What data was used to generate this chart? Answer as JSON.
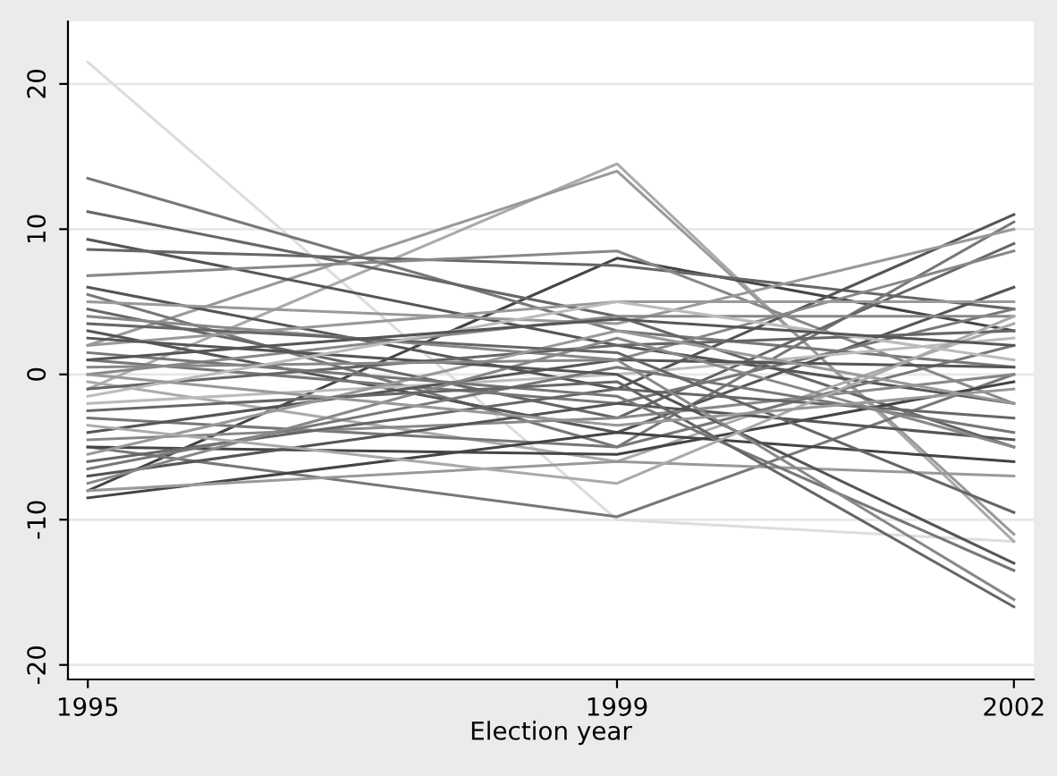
{
  "chart_data": {
    "type": "line",
    "xlabel": "Election year",
    "x": [
      1995,
      1999,
      2002
    ],
    "xlim": [
      1994.85,
      2002.15
    ],
    "xticks": [
      1995,
      1999,
      2002
    ],
    "ylim": [
      -21,
      24.3
    ],
    "yticks": [
      -20,
      -10,
      0,
      10,
      20
    ],
    "grid": "y",
    "legend": false,
    "marker": "none",
    "line_style": "solid",
    "series": [
      {
        "color": "#dddddd",
        "values": [
          21.5,
          -10,
          -11.5
        ]
      },
      {
        "color": "#aaaaaa",
        "values": [
          -1,
          14.5,
          -11.5
        ]
      },
      {
        "color": "#999999",
        "values": [
          2,
          14,
          -11
        ]
      },
      {
        "color": "#444444",
        "values": [
          -8,
          8,
          3
        ]
      },
      {
        "color": "#777777",
        "values": [
          13.5,
          3,
          0.5
        ]
      },
      {
        "color": "#666666",
        "values": [
          11.2,
          4,
          -5
        ]
      },
      {
        "color": "#777777",
        "values": [
          -5,
          -9.8,
          0
        ]
      },
      {
        "color": "#555555",
        "values": [
          9.3,
          2,
          -2
        ]
      },
      {
        "color": "#666666",
        "values": [
          8.6,
          7.5,
          4.5
        ]
      },
      {
        "color": "#888888",
        "values": [
          6.8,
          8.5,
          -2
        ]
      },
      {
        "color": "#555555",
        "values": [
          6,
          -1,
          11
        ]
      },
      {
        "color": "#777777",
        "values": [
          5.5,
          -5,
          10.5
        ]
      },
      {
        "color": "#999999",
        "values": [
          5,
          3.5,
          10
        ]
      },
      {
        "color": "#666666",
        "values": [
          4.5,
          -3,
          9
        ]
      },
      {
        "color": "#888888",
        "values": [
          4,
          1,
          8.5
        ]
      },
      {
        "color": "#555555",
        "values": [
          3,
          -4,
          6
        ]
      },
      {
        "color": "#999999",
        "values": [
          2,
          5,
          5
        ]
      },
      {
        "color": "#777777",
        "values": [
          1,
          -2,
          4.5
        ]
      },
      {
        "color": "#888888",
        "values": [
          0,
          4,
          4
        ]
      },
      {
        "color": "#aaaaaa",
        "values": [
          -0.5,
          -6,
          3.5
        ]
      },
      {
        "color": "#666666",
        "values": [
          -1,
          2,
          3
        ]
      },
      {
        "color": "#bbbbbb",
        "values": [
          -2,
          0,
          2.5
        ]
      },
      {
        "color": "#777777",
        "values": [
          -3,
          -5,
          2
        ]
      },
      {
        "color": "#555555",
        "values": [
          -4,
          1,
          0.5
        ]
      },
      {
        "color": "#888888",
        "values": [
          -4.5,
          -3,
          0
        ]
      },
      {
        "color": "#444444",
        "values": [
          -5,
          -5.5,
          -0.5
        ]
      },
      {
        "color": "#999999",
        "values": [
          -5.5,
          3,
          -2
        ]
      },
      {
        "color": "#666666",
        "values": [
          -6,
          -1,
          -3
        ]
      },
      {
        "color": "#777777",
        "values": [
          -6.5,
          0.5,
          -4
        ]
      },
      {
        "color": "#555555",
        "values": [
          -7,
          -2,
          -4.5
        ]
      },
      {
        "color": "#888888",
        "values": [
          -7.5,
          2.5,
          -5
        ]
      },
      {
        "color": "#444444",
        "values": [
          -8.5,
          -4,
          -6
        ]
      },
      {
        "color": "#999999",
        "values": [
          -8,
          -6,
          -7
        ]
      },
      {
        "color": "#666666",
        "values": [
          3.5,
          1.5,
          -9.5
        ]
      },
      {
        "color": "#555555",
        "values": [
          2.5,
          0,
          -13
        ]
      },
      {
        "color": "#777777",
        "values": [
          1.5,
          -1.5,
          -13.5
        ]
      },
      {
        "color": "#888888",
        "values": [
          0.5,
          1,
          -15.5
        ]
      },
      {
        "color": "#666666",
        "values": [
          -2.5,
          -0.5,
          -16
        ]
      },
      {
        "color": "#aaaaaa",
        "values": [
          -3.5,
          -7.5,
          4
        ]
      },
      {
        "color": "#bbbbbb",
        "values": [
          -1.5,
          5,
          1
        ]
      },
      {
        "color": "#999999",
        "values": [
          0,
          -3.5,
          -1
        ]
      },
      {
        "color": "#555555",
        "values": [
          1,
          3.8,
          2
        ]
      }
    ]
  }
}
